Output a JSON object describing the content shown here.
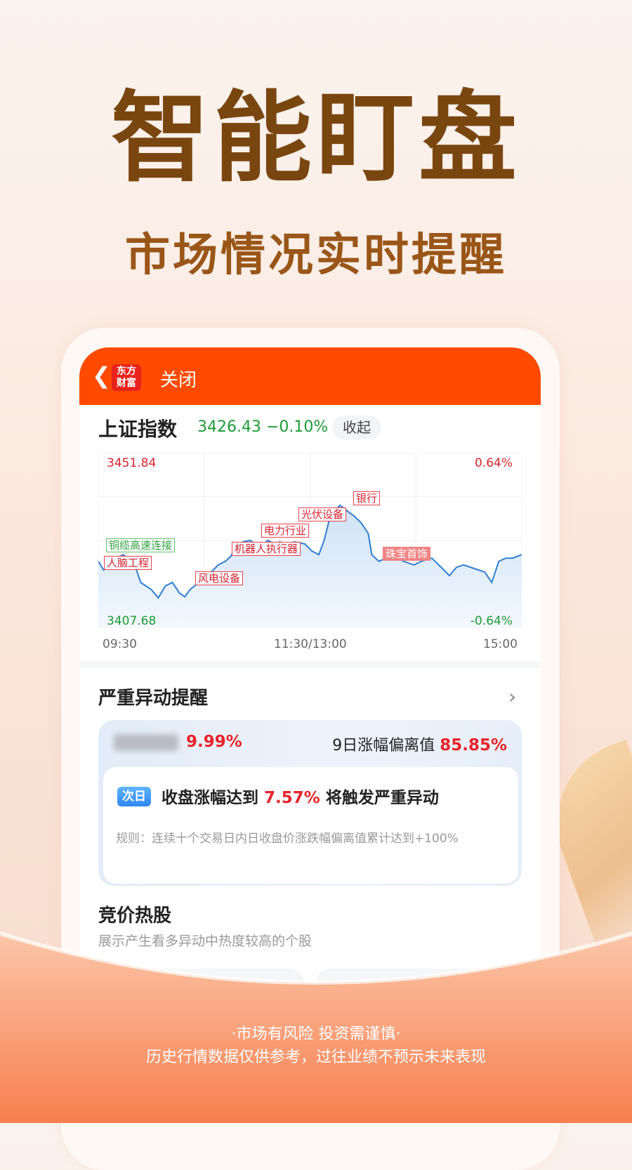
{
  "hero": {
    "title": "智能盯盘",
    "subtitle": "市场情况实时提醒"
  },
  "app": {
    "header": {
      "logo_text": [
        "东方",
        "财富"
      ],
      "back_icon": "chevron-left-icon",
      "close_label": "关闭",
      "bg_color": "#ff4a00"
    }
  },
  "index": {
    "name": "上证指数",
    "value": "3426.43 −0.10%",
    "collapse_label": "收起"
  },
  "chart_data": {
    "type": "line",
    "ylim": [
      3407.68,
      3451.84
    ],
    "y_labels_left": [
      "3451.84",
      "3407.68"
    ],
    "y_labels_right": [
      "0.64%",
      "-0.64%"
    ],
    "x_ticks": [
      "09:30",
      "11:30/13:00",
      "15:00"
    ],
    "grid": true,
    "line_color": "#2f7fd0",
    "x": [
      "09:30",
      "09:33",
      "09:38",
      "09:44",
      "09:50",
      "09:54",
      "10:00",
      "10:04",
      "10:08",
      "10:12",
      "10:16",
      "10:19",
      "10:22",
      "10:26",
      "10:30",
      "10:34",
      "10:38",
      "10:42",
      "10:45",
      "10:48",
      "10:52",
      "10:56",
      "11:02",
      "11:06",
      "11:10",
      "11:13",
      "11:17",
      "11:21",
      "11:27",
      "13:01",
      "13:05",
      "13:08",
      "13:11",
      "13:15",
      "13:17",
      "13:21",
      "13:25",
      "13:29",
      "13:33",
      "13:35",
      "13:39",
      "13:43",
      "13:47",
      "13:53",
      "13:59",
      "14:03",
      "14:09",
      "14:15",
      "14:19",
      "14:23",
      "14:27",
      "14:33",
      "14:39",
      "14:43",
      "14:47",
      "14:51",
      "14:55",
      "15:00"
    ],
    "values": [
      3424.5,
      3422.3,
      3424.5,
      3426.2,
      3424.5,
      3419.2,
      3417.4,
      3415.3,
      3418.3,
      3419.2,
      3416.5,
      3415.6,
      3417.4,
      3418.8,
      3420.9,
      3421.8,
      3423.6,
      3424.5,
      3425.7,
      3428.0,
      3429.4,
      3429.8,
      3428.0,
      3429.8,
      3428.9,
      3429.4,
      3428.3,
      3429.4,
      3428.9,
      3427.1,
      3426.2,
      3429.8,
      3435.1,
      3437.7,
      3438.6,
      3437.2,
      3435.9,
      3434.2,
      3431.5,
      3426.2,
      3424.5,
      3425.3,
      3426.2,
      3424.5,
      3423.6,
      3424.5,
      3425.3,
      3422.7,
      3420.9,
      3423.0,
      3423.6,
      3422.7,
      3421.8,
      3419.2,
      3424.5,
      3425.3,
      3425.3,
      3426.2
    ],
    "annotations": [
      {
        "label": "铜缆高速连接",
        "color": "green"
      },
      {
        "label": "人脑工程",
        "color": "red"
      },
      {
        "label": "风电设备",
        "color": "red"
      },
      {
        "label": "机器人执行器",
        "color": "red"
      },
      {
        "label": "电力行业",
        "color": "red"
      },
      {
        "label": "光伏设备",
        "color": "red"
      },
      {
        "label": "银行",
        "color": "red"
      },
      {
        "label": "珠宝首饰",
        "color": "red-filled"
      }
    ]
  },
  "alert_section": {
    "title": "严重异动提醒",
    "stock_change": "9.99%",
    "deviation_label": "9日涨幅偏离值",
    "deviation_value": "85.85%",
    "badge": "次日",
    "alert_pre": "收盘涨幅达到",
    "alert_value": "7.57%",
    "alert_post": "将触发严重异动",
    "rule": "规则：连续十个交易日内日收盘价涨跌幅偏离值累计达到+100%"
  },
  "hot_section": {
    "title": "竞价热股",
    "subtitle": "展示产生看多异动中热度较高的个股"
  },
  "footer": {
    "line1": "·市场有风险  投资需谨慎·",
    "line2": "历史行情数据仅供参考，过往业绩不预示未来表现"
  }
}
